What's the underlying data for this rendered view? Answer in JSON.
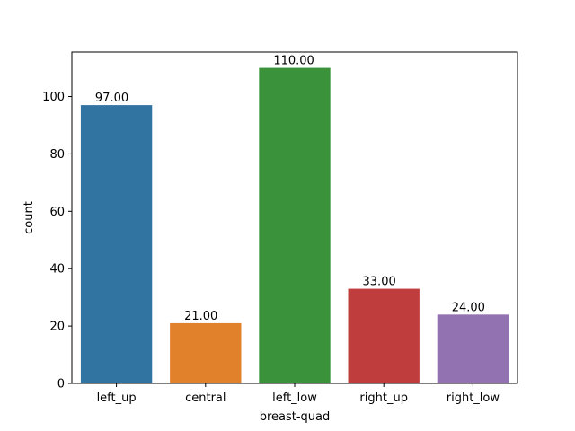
{
  "chart_data": {
    "type": "bar",
    "title": "",
    "xlabel": "breast-quad",
    "ylabel": "count",
    "categories": [
      "left_up",
      "central",
      "left_low",
      "right_up",
      "right_low"
    ],
    "values": [
      97,
      21,
      110,
      33,
      24
    ],
    "data_labels": [
      "97.00",
      "21.00",
      "110.00",
      "33.00",
      "24.00"
    ],
    "colors": [
      "#3274a1",
      "#e1812c",
      "#3a923a",
      "#c03d3e",
      "#9372b2"
    ],
    "ylim": [
      0,
      115.5
    ],
    "yticks": [
      0,
      20,
      40,
      60,
      80,
      100
    ],
    "grid": false,
    "legend": "none"
  }
}
